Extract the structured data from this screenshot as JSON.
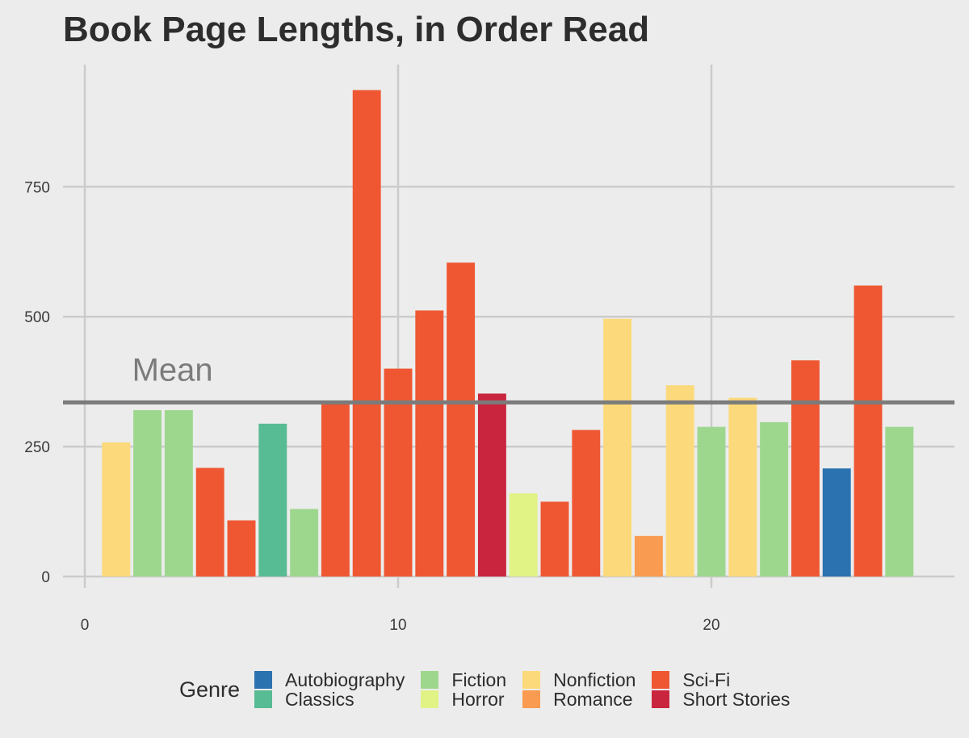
{
  "chart_data": {
    "type": "bar",
    "title": "Book Page Lengths, in Order Read",
    "xlabel": "",
    "ylabel": "",
    "x_ticks": [
      0,
      10,
      20
    ],
    "y_ticks": [
      0,
      250,
      500,
      750
    ],
    "xlim": [
      0,
      27
    ],
    "ylim": [
      0,
      940
    ],
    "grid": true,
    "legend_position": "bottom",
    "legend_title": "Genre",
    "genres": [
      {
        "name": "Autobiography",
        "color": "#2b72b0"
      },
      {
        "name": "Classics",
        "color": "#57bb93"
      },
      {
        "name": "Fiction",
        "color": "#9dd78e"
      },
      {
        "name": "Horror",
        "color": "#e1f385"
      },
      {
        "name": "Nonfiction",
        "color": "#fcd97a"
      },
      {
        "name": "Romance",
        "color": "#f99b50"
      },
      {
        "name": "Sci-Fi",
        "color": "#ef5733"
      },
      {
        "name": "Short Stories",
        "color": "#c9253e"
      }
    ],
    "bars": [
      {
        "x": 1,
        "value": 258,
        "genre": "Nonfiction"
      },
      {
        "x": 2,
        "value": 320,
        "genre": "Fiction"
      },
      {
        "x": 3,
        "value": 320,
        "genre": "Fiction"
      },
      {
        "x": 4,
        "value": 209,
        "genre": "Sci-Fi"
      },
      {
        "x": 5,
        "value": 108,
        "genre": "Sci-Fi"
      },
      {
        "x": 6,
        "value": 294,
        "genre": "Classics"
      },
      {
        "x": 7,
        "value": 130,
        "genre": "Fiction"
      },
      {
        "x": 8,
        "value": 336,
        "genre": "Sci-Fi"
      },
      {
        "x": 9,
        "value": 936,
        "genre": "Sci-Fi"
      },
      {
        "x": 10,
        "value": 400,
        "genre": "Sci-Fi"
      },
      {
        "x": 11,
        "value": 512,
        "genre": "Sci-Fi"
      },
      {
        "x": 12,
        "value": 604,
        "genre": "Sci-Fi"
      },
      {
        "x": 13,
        "value": 352,
        "genre": "Short Stories"
      },
      {
        "x": 14,
        "value": 160,
        "genre": "Horror"
      },
      {
        "x": 15,
        "value": 144,
        "genre": "Sci-Fi"
      },
      {
        "x": 16,
        "value": 282,
        "genre": "Sci-Fi"
      },
      {
        "x": 17,
        "value": 496,
        "genre": "Nonfiction"
      },
      {
        "x": 18,
        "value": 78,
        "genre": "Romance"
      },
      {
        "x": 19,
        "value": 368,
        "genre": "Nonfiction"
      },
      {
        "x": 20,
        "value": 288,
        "genre": "Fiction"
      },
      {
        "x": 21,
        "value": 344,
        "genre": "Nonfiction"
      },
      {
        "x": 22,
        "value": 297,
        "genre": "Fiction"
      },
      {
        "x": 23,
        "value": 416,
        "genre": "Sci-Fi"
      },
      {
        "x": 24,
        "value": 208,
        "genre": "Autobiography"
      },
      {
        "x": 25,
        "value": 560,
        "genre": "Sci-Fi"
      },
      {
        "x": 26,
        "value": 288,
        "genre": "Fiction"
      }
    ],
    "mean": {
      "value": 335,
      "label": "Mean",
      "x": 2.8
    }
  }
}
